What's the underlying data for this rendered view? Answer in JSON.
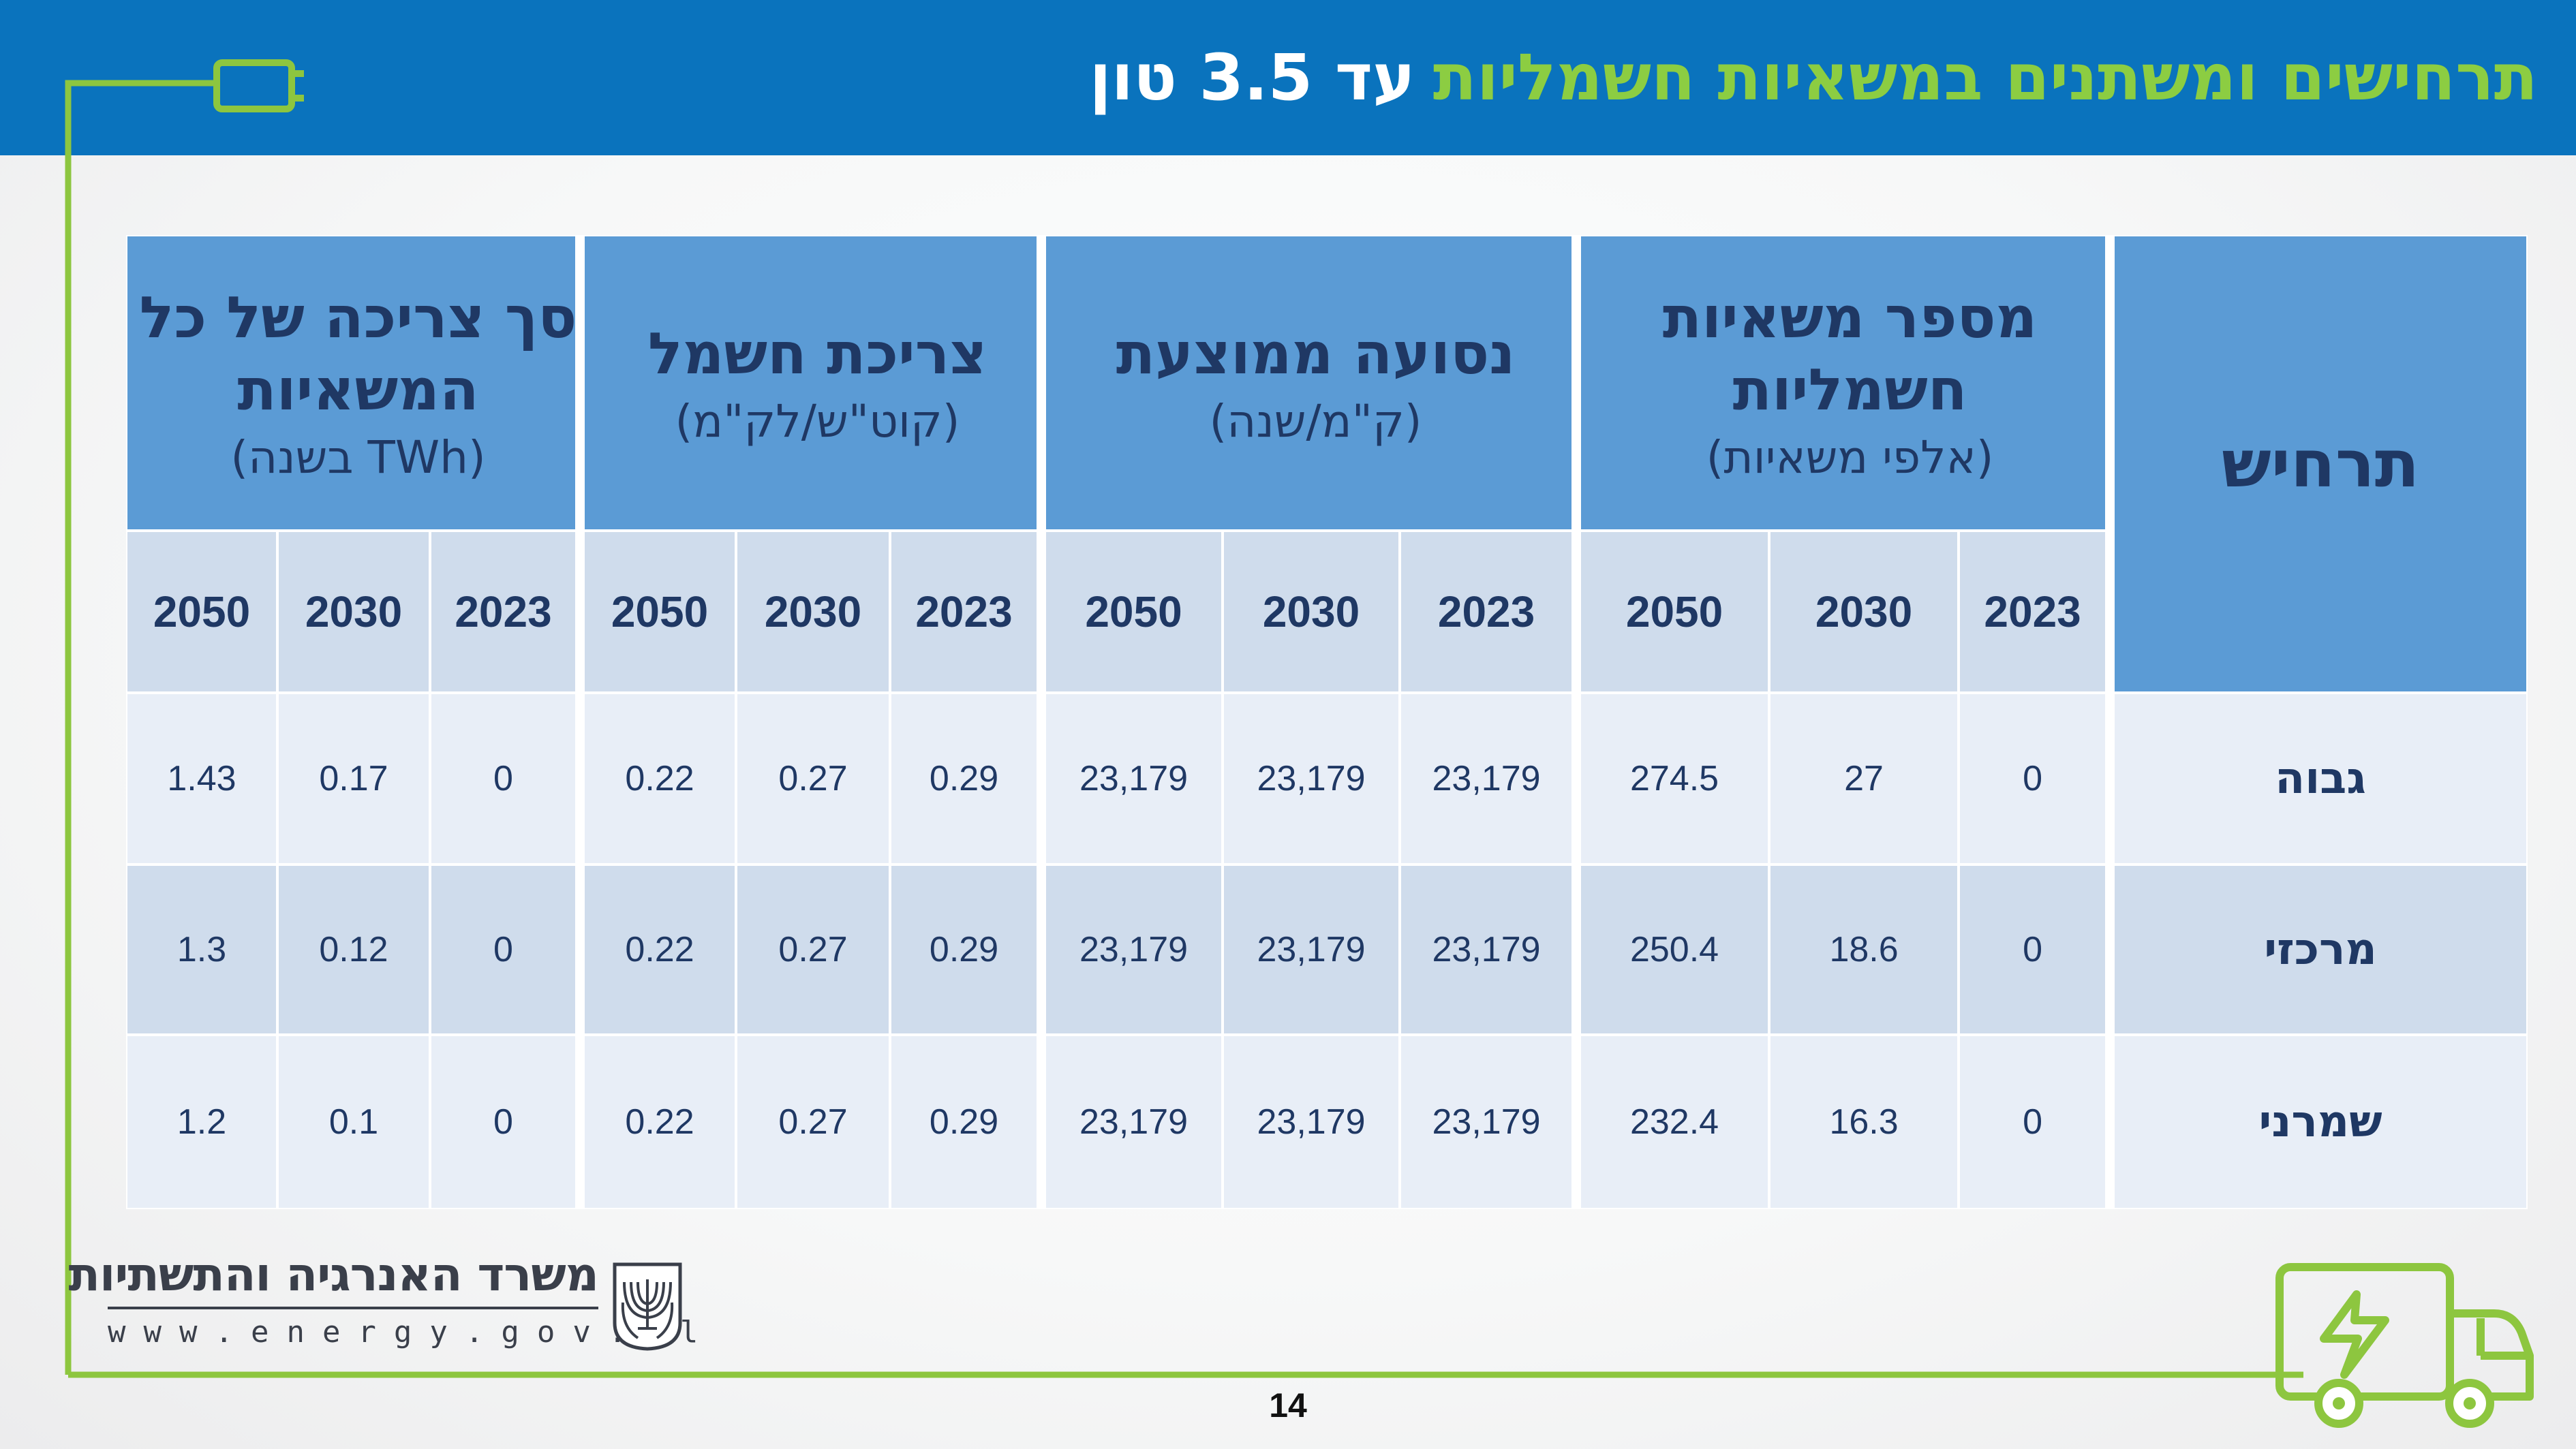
{
  "header": {
    "title_green": "תרחישים ומשתנים במשאיות חשמליות",
    "title_white": "עד 3.5 טון"
  },
  "table": {
    "scenario_header": "תרחיש",
    "groups": [
      {
        "name": "מספר משאיות חשמליות",
        "unit": "(אלפי משאיות)",
        "years": [
          "2023",
          "2030",
          "2050"
        ]
      },
      {
        "name": "נסועה ממוצעת",
        "unit": "(ק\"מ/שנה)",
        "years": [
          "2023",
          "2030",
          "2050"
        ]
      },
      {
        "name": "צריכת חשמל",
        "unit": "(קוט\"ש/לק\"מ)",
        "years": [
          "2023",
          "2030",
          "2050"
        ]
      },
      {
        "name": "סך צריכה של כל המשאיות",
        "unit": "(TWh בשנה)",
        "years": [
          "2023",
          "2030",
          "2050"
        ]
      }
    ],
    "rows": [
      {
        "scenario": "גבוה",
        "trucks": [
          "0",
          "27",
          "274.5"
        ],
        "mileage": [
          "23,179",
          "23,179",
          "23,179"
        ],
        "consumption": [
          "0.29",
          "0.27",
          "0.22"
        ],
        "total": [
          "0",
          "0.17",
          "1.43"
        ]
      },
      {
        "scenario": "מרכזי",
        "trucks": [
          "0",
          "18.6",
          "250.4"
        ],
        "mileage": [
          "23,179",
          "23,179",
          "23,179"
        ],
        "consumption": [
          "0.29",
          "0.27",
          "0.22"
        ],
        "total": [
          "0",
          "0.12",
          "1.3"
        ]
      },
      {
        "scenario": "שמרני",
        "trucks": [
          "0",
          "16.3",
          "232.4"
        ],
        "mileage": [
          "23,179",
          "23,179",
          "23,179"
        ],
        "consumption": [
          "0.29",
          "0.27",
          "0.22"
        ],
        "total": [
          "0",
          "0.1",
          "1.2"
        ]
      }
    ]
  },
  "footer": {
    "ministry_name": "משרד האנרגיה והתשתיות",
    "website": "www.energy.gov.il",
    "page_number": "14"
  },
  "colors": {
    "header_blue": "#0a73bd",
    "title_green": "#8ccd42",
    "accent_green": "#8dc63f",
    "table_header_blue": "#5b9bd5",
    "table_text_navy": "#1f3864",
    "row_light": "#e8eef7",
    "row_dark": "#cfdcec"
  },
  "icons": [
    "plug-icon",
    "electric-truck-icon",
    "ministry-emblem-icon"
  ]
}
